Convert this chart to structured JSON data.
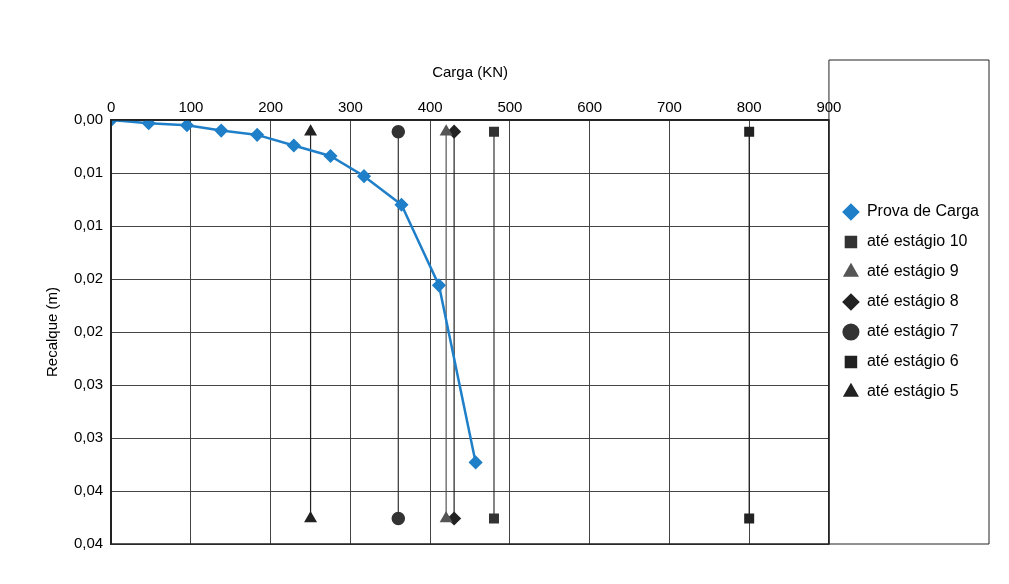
{
  "chart_data": {
    "type": "line",
    "xlabel": "Carga (KN)",
    "ylabel": "Recalque (m)",
    "xlim": [
      0,
      900
    ],
    "xticks": [
      0,
      100,
      200,
      300,
      400,
      500,
      600,
      700,
      800,
      900
    ],
    "ylim": [
      0.04,
      0
    ],
    "yticks": [
      {
        "value": 0,
        "label": "0,00"
      },
      {
        "value": 0.005,
        "label": "0,01"
      },
      {
        "value": 0.01,
        "label": "0,01"
      },
      {
        "value": 0.015,
        "label": "0,02"
      },
      {
        "value": 0.02,
        "label": "0,02"
      },
      {
        "value": 0.025,
        "label": "0,03"
      },
      {
        "value": 0.03,
        "label": "0,03"
      },
      {
        "value": 0.035,
        "label": "0,04"
      },
      {
        "value": 0.04,
        "label": "0,04"
      }
    ],
    "grid": true,
    "legend": "right",
    "line_style": "solid",
    "series": [
      {
        "name": "Prova de Carga",
        "color": "#1f7fc8",
        "marker": "diamond",
        "x": [
          0,
          47,
          95,
          138,
          183,
          229,
          275,
          317,
          364,
          411,
          457
        ],
        "values": [
          0,
          0.0003,
          0.0005,
          0.001,
          0.0014,
          0.0024,
          0.0034,
          0.0053,
          0.008,
          0.0156,
          0.0323
        ]
      },
      {
        "name": "até estágio 10",
        "color": "#333333",
        "marker": "square",
        "x": [
          480,
          480
        ],
        "values": [
          0.0011,
          0.0376
        ]
      },
      {
        "name": "até estágio 9",
        "color": "#555555",
        "marker": "triangle",
        "x": [
          420,
          420
        ],
        "values": [
          0.0011,
          0.0376
        ]
      },
      {
        "name": "até estágio 8",
        "color": "#222222",
        "marker": "diamond",
        "x": [
          430,
          430
        ],
        "values": [
          0.0011,
          0.0376
        ]
      },
      {
        "name": "até estágio 7",
        "color": "#333333",
        "marker": "circle",
        "x": [
          360,
          360
        ],
        "values": [
          0.0011,
          0.0376
        ]
      },
      {
        "name": "até estágio 6",
        "color": "#222222",
        "marker": "square",
        "x": [
          800,
          800
        ],
        "values": [
          0.0011,
          0.0376
        ]
      },
      {
        "name": "até estágio 5",
        "color": "#222222",
        "marker": "triangle",
        "x": [
          250,
          250
        ],
        "values": [
          0.0011,
          0.0376
        ]
      }
    ]
  }
}
